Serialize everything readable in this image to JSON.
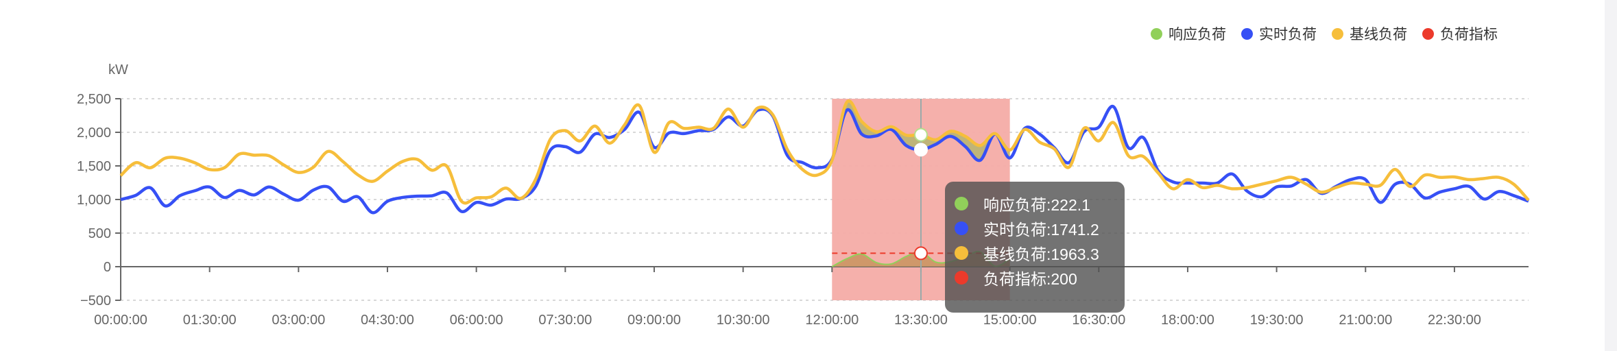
{
  "legend": [
    {
      "name": "响应负荷",
      "color": "#91d05a"
    },
    {
      "name": "实时负荷",
      "color": "#3650f5"
    },
    {
      "name": "基线负荷",
      "color": "#f6be3b"
    },
    {
      "name": "负荷指标",
      "color": "#ec3a2b"
    }
  ],
  "tooltip": {
    "rows": [
      {
        "text": "响应负荷:222.1",
        "color": "#91d05a"
      },
      {
        "text": "实时负荷:1741.2",
        "color": "#3650f5"
      },
      {
        "text": "基线负荷:1963.3",
        "color": "#f6be3b"
      },
      {
        "text": "负荷指标:200",
        "color": "#ec3a2b"
      }
    ],
    "time": "13:30:00"
  },
  "chart_data": {
    "type": "line",
    "ylabel": "kW",
    "ylim": [
      -500,
      2500
    ],
    "yticks": [
      -500,
      0,
      500,
      1000,
      1500,
      2000,
      2500
    ],
    "ytick_labels": [
      "−500",
      "0",
      "500",
      "1,000",
      "1,500",
      "2,000",
      "2,500"
    ],
    "xtick_labels": [
      "00:00:00",
      "01:30:00",
      "03:00:00",
      "04:30:00",
      "06:00:00",
      "07:30:00",
      "09:00:00",
      "10:30:00",
      "12:00:00",
      "13:30:00",
      "15:00:00",
      "16:30:00",
      "18:00:00",
      "19:30:00",
      "21:00:00",
      "22:30:00"
    ],
    "x_interval": "15 min",
    "x_start": "00:00:00",
    "grid": "horizontal dashed",
    "legend_position": "top-right",
    "highlight_window": {
      "from": "12:00:00",
      "to": "15:00:00",
      "color": "#f4aca7"
    },
    "series": [
      {
        "name": "实时负荷",
        "color": "#3650f5",
        "values": [
          1000,
          1060,
          1175,
          905,
          1057,
          1130,
          1186,
          1030,
          1135,
          1068,
          1186,
          1080,
          990,
          1140,
          1186,
          973,
          1040,
          804,
          973,
          1030,
          1050,
          1055,
          1098,
          821,
          956,
          916,
          1007,
          1014,
          1194,
          1736,
          1787,
          1703,
          1974,
          1923,
          2042,
          2296,
          1777,
          1991,
          1981,
          2025,
          2042,
          2229,
          2093,
          2330,
          2245,
          1651,
          1550,
          1472,
          1601,
          2330,
          1974,
          1947,
          2042,
          1804,
          1741.2,
          1821,
          1940,
          1787,
          1584,
          1974,
          1618,
          2059,
          1974,
          1770,
          1550,
          2008,
          2076,
          2381,
          1770,
          1923,
          1431,
          1262,
          1245,
          1245,
          1245,
          1380,
          1126,
          1041,
          1187,
          1201,
          1296,
          1092,
          1194,
          1296,
          1296,
          957,
          1228,
          1228,
          1024,
          1109,
          1160,
          1194,
          1007,
          1119,
          1058,
          974
        ]
      },
      {
        "name": "基线负荷",
        "color": "#f6be3b",
        "values": [
          1355,
          1547,
          1473,
          1615,
          1615,
          1547,
          1446,
          1473,
          1676,
          1660,
          1652,
          1514,
          1402,
          1480,
          1716,
          1564,
          1368,
          1270,
          1422,
          1564,
          1598,
          1436,
          1497,
          973,
          1024,
          1040,
          1170,
          1017,
          1300,
          1900,
          2025,
          1872,
          2093,
          1838,
          2110,
          2398,
          1703,
          2144,
          2059,
          2076,
          2059,
          2347,
          2076,
          2364,
          2262,
          1736,
          1448,
          1363,
          1584,
          2449,
          2161,
          2008,
          2083,
          1957,
          1963.3,
          1889,
          2015,
          1940,
          1804,
          1981,
          1736,
          2042,
          1855,
          1753,
          1482,
          2059,
          1872,
          2144,
          1651,
          1641,
          1397,
          1160,
          1296,
          1177,
          1211,
          1160,
          1177,
          1228,
          1279,
          1330,
          1228,
          1109,
          1177,
          1245,
          1228,
          1211,
          1448,
          1194,
          1363,
          1330,
          1336,
          1296,
          1313,
          1330,
          1228,
          990
        ]
      },
      {
        "name": "响应负荷",
        "color": "#91d05a",
        "start": "12:00:00",
        "values": [
          0,
          119,
          187,
          61,
          41,
          153,
          222.1,
          68,
          75,
          153,
          220,
          7,
          118
        ]
      },
      {
        "name": "负荷指标",
        "color": "#ec3a2b",
        "start": "12:00:00",
        "values": [
          200,
          200,
          200,
          200,
          200,
          200,
          200,
          200,
          200,
          200,
          200,
          200,
          200
        ]
      }
    ]
  }
}
